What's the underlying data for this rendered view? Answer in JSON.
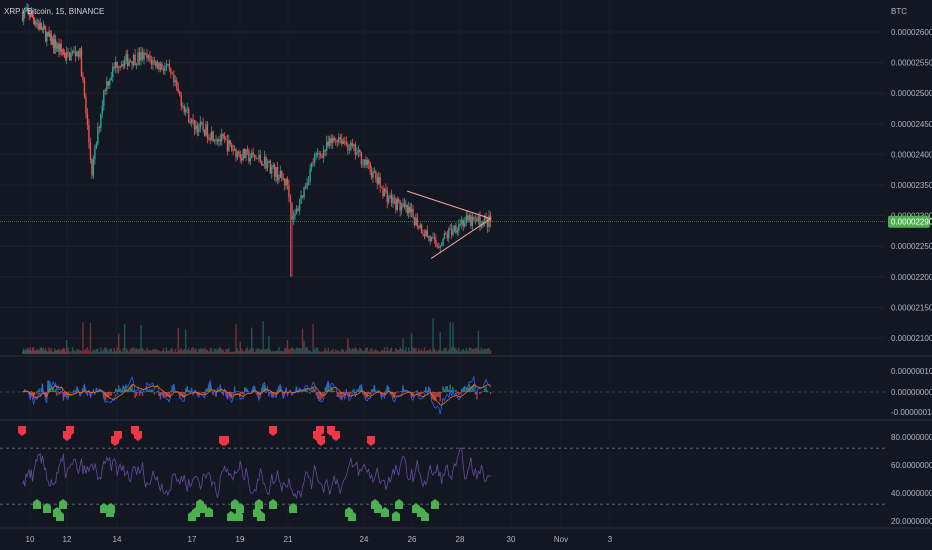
{
  "header": {
    "symbol_text": "XRP / Bitcoin, 15, BINANCE"
  },
  "price_axis": {
    "unit": "BTC",
    "ticks": [
      "0.00002600",
      "0.00002550",
      "0.00002500",
      "0.00002450",
      "0.00002400",
      "0.00002350",
      "0.00002300",
      "0.00002250",
      "0.00002200",
      "0.00002150",
      "0.00002100"
    ],
    "current_price_label": "0.00002290"
  },
  "macd_axis": {
    "ticks": [
      "0.00000010",
      "0.00000000",
      "-0.00000010"
    ]
  },
  "rsi_axis": {
    "ticks": [
      "80.00000000",
      "60.00000000",
      "40.00000000",
      "20.00000000"
    ]
  },
  "time_axis": {
    "ticks": [
      "10",
      "12",
      "14",
      "17",
      "19",
      "21",
      "24",
      "26",
      "28",
      "30",
      "Nov",
      "3"
    ]
  },
  "colors": {
    "background": "#131722",
    "up": "#26a69a",
    "down": "#ef5350",
    "price_line_badge": "#4caf50",
    "triangle": "#f7a6a0",
    "macd": "#2962ff",
    "signal": "#ff6d00",
    "rsi": "#7e57c2",
    "sell_marker": "#f23645",
    "buy_marker": "#4caf50"
  },
  "chart_data": [
    {
      "type": "candlestick",
      "title": "XRP / Bitcoin, 15, BINANCE",
      "ylabel": "BTC",
      "ylim": [
        2.09e-05,
        2.64e-05
      ],
      "close_path": [
        {
          "x": "10",
          "y": 2.63e-05
        },
        {
          "x": "11",
          "y": 2.59e-05
        },
        {
          "x": "12",
          "y": 2.56e-05
        },
        {
          "x": "12.5",
          "y": 2.57e-05
        },
        {
          "x": "13",
          "y": 2.37e-05
        },
        {
          "x": "13.5",
          "y": 2.51e-05
        },
        {
          "x": "14",
          "y": 2.55e-05
        },
        {
          "x": "15",
          "y": 2.56e-05
        },
        {
          "x": "16",
          "y": 2.54e-05
        },
        {
          "x": "17",
          "y": 2.45e-05
        },
        {
          "x": "18",
          "y": 2.43e-05
        },
        {
          "x": "19",
          "y": 2.4e-05
        },
        {
          "x": "20",
          "y": 2.39e-05
        },
        {
          "x": "21",
          "y": 2.35e-05
        },
        {
          "x": "21.2",
          "y": 2.29e-05
        },
        {
          "x": "22",
          "y": 2.39e-05
        },
        {
          "x": "23",
          "y": 2.43e-05
        },
        {
          "x": "24",
          "y": 2.39e-05
        },
        {
          "x": "25",
          "y": 2.33e-05
        },
        {
          "x": "26",
          "y": 2.3e-05
        },
        {
          "x": "27",
          "y": 2.25e-05
        },
        {
          "x": "28",
          "y": 2.29e-05
        },
        {
          "x": "29",
          "y": 2.29e-05
        }
      ],
      "triangle_pattern": {
        "start": {
          "x": "25.8",
          "y": 2.34e-05
        },
        "apex": {
          "x": "29.2",
          "y": 2.295e-05
        },
        "bottom_start": {
          "x": "26.8",
          "y": 2.23e-05
        }
      },
      "current_price": 2.29e-05
    },
    {
      "type": "line",
      "series": [],
      "ylim": [
        -1.5e-07,
        1.5e-07
      ]
    },
    {
      "type": "line",
      "series": [],
      "ylim": [
        20,
        90
      ],
      "reference_lines": [
        72,
        32
      ],
      "sell_signals": 16,
      "buy_signals": 33
    }
  ]
}
